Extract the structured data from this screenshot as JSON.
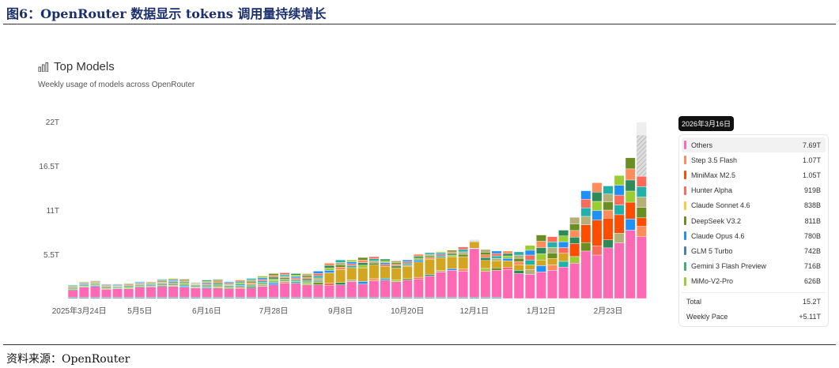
{
  "figure_title": "图6：OpenRouter 数据显示 tokens 调用量持续增长",
  "source": "资料来源：OpenRouter",
  "panel": {
    "title": "Top Models",
    "subtitle": "Weekly usage of models across OpenRouter",
    "icon": "bar-chart-icon"
  },
  "tooltip": {
    "date": "2026年3月16日",
    "items": [
      {
        "name": "Others",
        "value": "7.69T",
        "color": "#ff69b4"
      },
      {
        "name": "Step 3.5 Flash",
        "value": "1.07T",
        "color": "#ff8c5a"
      },
      {
        "name": "MiniMax M2.5",
        "value": "1.05T",
        "color": "#ff4d00"
      },
      {
        "name": "Hunter Alpha",
        "value": "919B",
        "color": "#ff6a5a"
      },
      {
        "name": "Claude Sonnet 4.6",
        "value": "838B",
        "color": "#ffc83d"
      },
      {
        "name": "DeepSeek V3.2",
        "value": "811B",
        "color": "#6b8e23"
      },
      {
        "name": "Claude Opus 4.6",
        "value": "780B",
        "color": "#1e90ff"
      },
      {
        "name": "GLM 5 Turbo",
        "value": "742B",
        "color": "#4a7fb5"
      },
      {
        "name": "Gemini 3 Flash Preview",
        "value": "716B",
        "color": "#3cb371"
      },
      {
        "name": "MiMo-V2-Pro",
        "value": "626B",
        "color": "#9acd32"
      }
    ],
    "total_label": "Total",
    "total": "15.2T",
    "pace_label": "Weekly Pace",
    "pace": "+5.11T"
  },
  "chart_data": {
    "type": "bar",
    "stacked": true,
    "title": "Top Models",
    "ylim": [
      0,
      22
    ],
    "yticks": [
      "22T",
      "16.5T",
      "11T",
      "5.5T"
    ],
    "ytick_values": [
      22,
      16.5,
      11,
      5.5
    ],
    "xticks": [
      {
        "label": "2025年3月24日",
        "week": 0
      },
      {
        "label": "5月5日",
        "week": 6
      },
      {
        "label": "6月16日",
        "week": 12
      },
      {
        "label": "7月28日",
        "week": 18
      },
      {
        "label": "9月8日",
        "week": 24
      },
      {
        "label": "10月20日",
        "week": 30
      },
      {
        "label": "12月1日",
        "week": 36
      },
      {
        "label": "1月12日",
        "week": 42
      },
      {
        "label": "2月23日",
        "week": 48
      }
    ],
    "unit": "T tokens",
    "totals": [
      1.7,
      2.1,
      2.2,
      1.8,
      1.8,
      1.9,
      2.1,
      2.1,
      2.4,
      2.5,
      2.4,
      2.0,
      2.3,
      2.4,
      2.1,
      2.3,
      2.5,
      2.8,
      3.1,
      3.2,
      3.1,
      3.1,
      3.4,
      4.4,
      4.8,
      4.8,
      5.1,
      5.2,
      4.9,
      4.7,
      4.8,
      5.5,
      5.7,
      5.8,
      6.0,
      6.4,
      7.3,
      6.1,
      5.9,
      5.9,
      5.8,
      6.6,
      7.9,
      7.7,
      8.5,
      10.1,
      13.4,
      14.4,
      14.0,
      15.3,
      17.5,
      15.2
    ],
    "others": [
      1.0,
      1.4,
      1.5,
      1.1,
      1.2,
      1.2,
      1.4,
      1.4,
      1.5,
      1.5,
      1.4,
      1.3,
      1.3,
      1.3,
      1.2,
      1.2,
      1.3,
      1.5,
      1.7,
      1.9,
      1.9,
      1.7,
      1.7,
      1.6,
      1.7,
      2.1,
      1.8,
      2.2,
      2.3,
      2.1,
      2.3,
      2.4,
      2.8,
      3.3,
      3.5,
      3.4,
      6.2,
      3.4,
      3.5,
      3.6,
      3.1,
      3.0,
      3.3,
      3.5,
      3.9,
      4.4,
      5.9,
      5.4,
      6.3,
      6.9,
      8.5,
      7.69
    ],
    "leading_model": [
      0.2,
      0.2,
      0.2,
      0.2,
      0.2,
      0.2,
      0.2,
      0.2,
      0.3,
      0.3,
      0.3,
      0.3,
      0.3,
      0.3,
      0.3,
      0.3,
      0.3,
      0.3,
      0.3,
      0.3,
      0.3,
      0.3,
      0.3,
      1.3,
      1.6,
      1.5,
      1.7,
      1.7,
      1.5,
      1.5,
      1.5,
      1.9,
      1.9,
      1.6,
      1.5,
      1.5,
      0.8,
      1.0,
      0.9,
      0.8,
      0.7,
      0.6,
      0.7,
      0.8,
      1.0,
      1.6,
      2.2,
      3.2,
      2.7,
      2.3,
      2.1,
      1.05
    ],
    "projected_last_week": 20.3,
    "colors": {
      "others": "#ff69b4",
      "leading_early": "#8fbc8f",
      "leading_mid": "#d4a520",
      "leading_late": "#ff4d00",
      "palette": [
        "#2e8b57",
        "#b5b07a",
        "#1e90ff",
        "#ff8c5a",
        "#20b2aa",
        "#9acd32",
        "#6b8e23",
        "#ff6a5a"
      ]
    }
  }
}
